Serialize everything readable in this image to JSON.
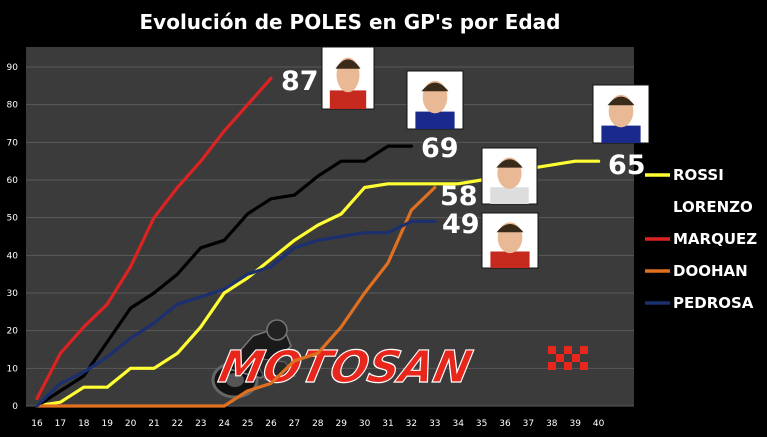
{
  "chart_data": {
    "type": "line",
    "title": "Evolución de POLES en GP's por Edad",
    "xlabel": "",
    "ylabel": "",
    "x_ticks": [
      16,
      17,
      18,
      19,
      20,
      21,
      22,
      23,
      24,
      25,
      26,
      27,
      28,
      29,
      30,
      31,
      32,
      33,
      34,
      35,
      36,
      37,
      38,
      39,
      40
    ],
    "y_ticks": [
      0,
      10,
      20,
      30,
      40,
      50,
      60,
      70,
      80,
      90
    ],
    "xlim": [
      16,
      40
    ],
    "ylim": [
      0,
      90
    ],
    "grid": true,
    "legend_position": "right",
    "series": [
      {
        "name": "ROSSI",
        "color": "#ffff33",
        "end_label": "65",
        "x": [
          16,
          17,
          18,
          19,
          20,
          21,
          22,
          23,
          24,
          25,
          26,
          27,
          28,
          29,
          30,
          31,
          32,
          33,
          34,
          35,
          36,
          37,
          38,
          39,
          40
        ],
        "y": [
          0,
          1,
          5,
          5,
          10,
          10,
          14,
          21,
          30,
          34,
          39,
          44,
          48,
          51,
          58,
          59,
          59,
          59,
          59,
          60,
          61,
          63,
          64,
          65,
          65
        ]
      },
      {
        "name": "LORENZO",
        "color": "#000000",
        "end_label": "69",
        "x": [
          16,
          17,
          18,
          19,
          20,
          21,
          22,
          23,
          24,
          25,
          26,
          27,
          28,
          29,
          30,
          31,
          32
        ],
        "y": [
          0,
          4,
          8,
          17,
          26,
          30,
          35,
          42,
          44,
          51,
          55,
          56,
          61,
          65,
          65,
          69,
          69
        ]
      },
      {
        "name": "MARQUEZ",
        "color": "#dd2222",
        "end_label": "87",
        "x": [
          16,
          17,
          18,
          19,
          20,
          21,
          22,
          23,
          24,
          25,
          26
        ],
        "y": [
          2,
          14,
          21,
          27,
          37,
          50,
          58,
          65,
          73,
          80,
          87
        ]
      },
      {
        "name": "DOOHAN",
        "color": "#e07020",
        "end_label": "58",
        "x": [
          16,
          17,
          18,
          19,
          20,
          21,
          22,
          23,
          24,
          25,
          26,
          27,
          28,
          29,
          30,
          31,
          32,
          33
        ],
        "y": [
          0,
          0,
          0,
          0,
          0,
          0,
          0,
          0,
          0,
          4,
          6,
          12,
          14,
          21,
          30,
          38,
          52,
          58
        ]
      },
      {
        "name": "PEDROSA",
        "color": "#1c2f6e",
        "end_label": "49",
        "x": [
          16,
          17,
          18,
          19,
          20,
          21,
          22,
          23,
          24,
          25,
          26,
          27,
          28,
          29,
          30,
          31,
          32,
          33
        ],
        "y": [
          0,
          6,
          9,
          13,
          18,
          22,
          27,
          29,
          31,
          35,
          37,
          42,
          44,
          45,
          46,
          46,
          49,
          49
        ]
      }
    ],
    "watermark": "MOTOSAN"
  }
}
